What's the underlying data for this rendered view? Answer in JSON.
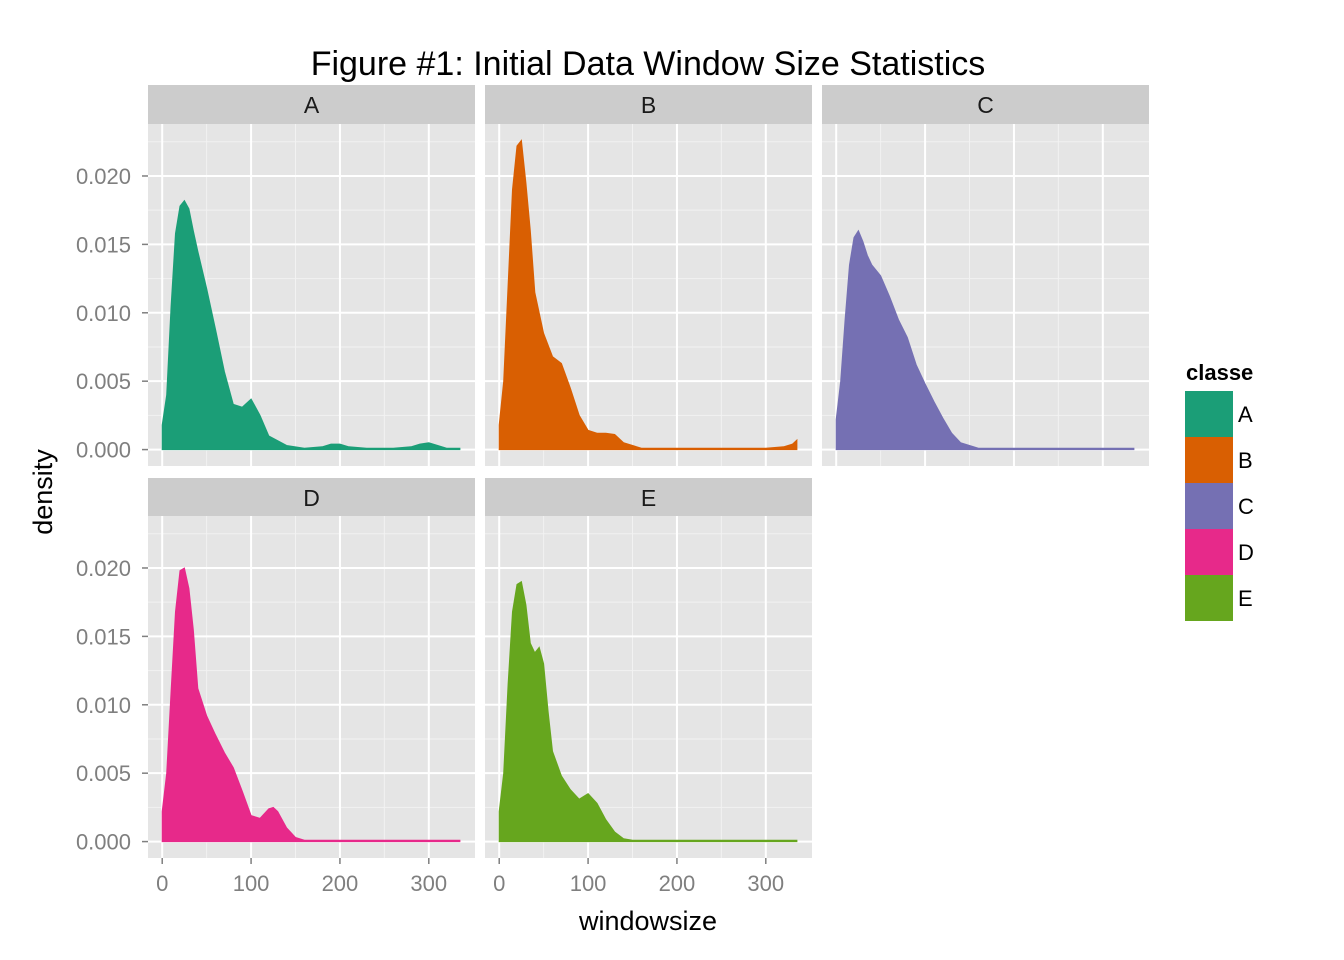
{
  "chart_data": {
    "type": "area",
    "title": "Figure #1: Initial Data Window Size Statistics",
    "xlabel": "windowsize",
    "ylabel": "density",
    "xlim": [
      -16,
      352
    ],
    "ylim": [
      -0.0012,
      0.0238
    ],
    "x_ticks": [
      0,
      100,
      200,
      300
    ],
    "x_tick_labels": [
      "0",
      "100",
      "200",
      "300"
    ],
    "y_ticks": [
      0.0,
      0.005,
      0.01,
      0.015,
      0.02
    ],
    "y_tick_labels": [
      "0.000",
      "0.005",
      "0.010",
      "0.015",
      "0.020"
    ],
    "grid": true,
    "legend": {
      "title": "classe",
      "position": "right",
      "entries": [
        "A",
        "B",
        "C",
        "D",
        "E"
      ]
    },
    "colors": {
      "A": "#1b9e77",
      "B": "#d95f02",
      "C": "#7570b3",
      "D": "#e7298a",
      "E": "#66a61e"
    },
    "panels": [
      {
        "name": "A",
        "x": [
          0,
          5,
          10,
          15,
          20,
          25,
          30,
          35,
          40,
          50,
          60,
          70,
          80,
          90,
          100,
          110,
          120,
          140,
          160,
          180,
          190,
          200,
          210,
          230,
          260,
          280,
          290,
          300,
          310,
          320,
          335
        ],
        "density": [
          0.0018,
          0.004,
          0.0105,
          0.0158,
          0.0178,
          0.0182,
          0.0176,
          0.016,
          0.0145,
          0.0118,
          0.0088,
          0.0057,
          0.0033,
          0.0031,
          0.0037,
          0.0025,
          0.001,
          0.0003,
          0.0001,
          0.0002,
          0.0004,
          0.0004,
          0.0002,
          0.0001,
          0.0001,
          0.0002,
          0.0004,
          0.0005,
          0.0003,
          0.0001,
          0.0001
        ]
      },
      {
        "name": "B",
        "x": [
          0,
          5,
          10,
          15,
          20,
          25,
          30,
          35,
          40,
          50,
          60,
          70,
          80,
          90,
          100,
          110,
          120,
          130,
          140,
          160,
          200,
          250,
          300,
          320,
          330,
          335
        ],
        "density": [
          0.0018,
          0.005,
          0.012,
          0.019,
          0.0222,
          0.0226,
          0.0195,
          0.016,
          0.0115,
          0.0085,
          0.0068,
          0.0063,
          0.0045,
          0.0025,
          0.0014,
          0.0012,
          0.0012,
          0.0011,
          0.0005,
          0.0001,
          0.0001,
          0.0001,
          0.0001,
          0.0002,
          0.0004,
          0.0007
        ]
      },
      {
        "name": "C",
        "x": [
          0,
          5,
          10,
          15,
          20,
          25,
          30,
          35,
          40,
          50,
          60,
          70,
          80,
          90,
          100,
          110,
          120,
          130,
          140,
          160,
          200,
          250,
          300,
          335
        ],
        "density": [
          0.0022,
          0.005,
          0.0095,
          0.0135,
          0.0155,
          0.016,
          0.0152,
          0.0142,
          0.0135,
          0.0127,
          0.0112,
          0.0095,
          0.0082,
          0.0062,
          0.0048,
          0.0035,
          0.0023,
          0.0012,
          0.0005,
          0.0001,
          0.0001,
          0.0001,
          0.0001,
          0.0001
        ]
      },
      {
        "name": "D",
        "x": [
          0,
          5,
          10,
          15,
          20,
          25,
          30,
          35,
          40,
          50,
          60,
          70,
          80,
          90,
          100,
          110,
          120,
          125,
          130,
          140,
          150,
          160,
          200,
          250,
          300,
          335
        ],
        "density": [
          0.0022,
          0.005,
          0.011,
          0.0168,
          0.0198,
          0.02,
          0.0185,
          0.0155,
          0.0112,
          0.0092,
          0.0078,
          0.0065,
          0.0054,
          0.0037,
          0.0019,
          0.0017,
          0.0024,
          0.0025,
          0.0022,
          0.001,
          0.0003,
          0.0001,
          0.0001,
          0.0001,
          0.0001,
          0.0001
        ]
      },
      {
        "name": "E",
        "x": [
          0,
          5,
          10,
          15,
          20,
          25,
          30,
          35,
          40,
          45,
          50,
          55,
          60,
          70,
          80,
          90,
          100,
          110,
          120,
          130,
          140,
          150,
          160,
          200,
          250,
          300,
          335
        ],
        "density": [
          0.0022,
          0.005,
          0.0115,
          0.0168,
          0.0188,
          0.019,
          0.0173,
          0.0145,
          0.0138,
          0.0142,
          0.013,
          0.0095,
          0.0066,
          0.0048,
          0.0038,
          0.0031,
          0.0035,
          0.0028,
          0.0016,
          0.0007,
          0.0002,
          0.0001,
          0.0001,
          0.0001,
          0.0001,
          0.0001,
          0.0001
        ]
      }
    ]
  }
}
